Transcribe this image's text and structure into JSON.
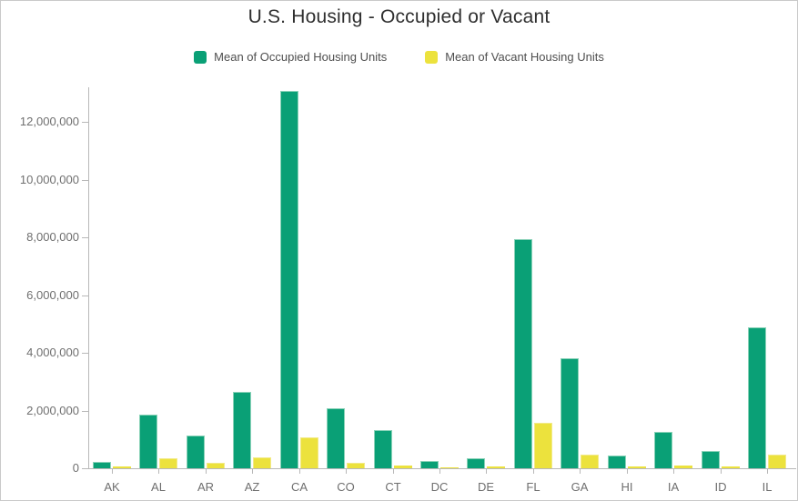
{
  "chart_data": {
    "type": "bar",
    "title": "U.S. Housing - Occupied or Vacant",
    "categories": [
      "AK",
      "AL",
      "AR",
      "AZ",
      "CA",
      "CO",
      "CT",
      "DC",
      "DE",
      "FL",
      "GA",
      "HI",
      "IA",
      "ID",
      "IL"
    ],
    "series": [
      {
        "name": "Mean of Occupied Housing Units",
        "color": "#0aa076",
        "edge_color": "#8ad2b8",
        "values": [
          230000,
          1850000,
          1120000,
          2640000,
          13070000,
          2090000,
          1330000,
          260000,
          350000,
          7940000,
          3810000,
          440000,
          1250000,
          600000,
          4870000
        ]
      },
      {
        "name": "Mean of Vacant Housing Units",
        "color": "#ece23d",
        "edge_color": "#f2ea89",
        "values": [
          55000,
          350000,
          180000,
          390000,
          1070000,
          200000,
          95000,
          25000,
          50000,
          1590000,
          460000,
          75000,
          105000,
          55000,
          465000
        ]
      }
    ],
    "xlabel": "",
    "ylabel": "",
    "ylim": [
      0,
      13200000
    ],
    "yticks": [
      0,
      2000000,
      4000000,
      6000000,
      8000000,
      10000000,
      12000000
    ],
    "grid": false,
    "legend_position": "top",
    "colors": {
      "axis": "#b8b8b8",
      "tick_label": "#6f6f6f",
      "title_text": "#2f2f2f",
      "legend_text": "#4f4f4f",
      "frame_border": "#c9c9c9",
      "background": "#ffffff"
    }
  }
}
